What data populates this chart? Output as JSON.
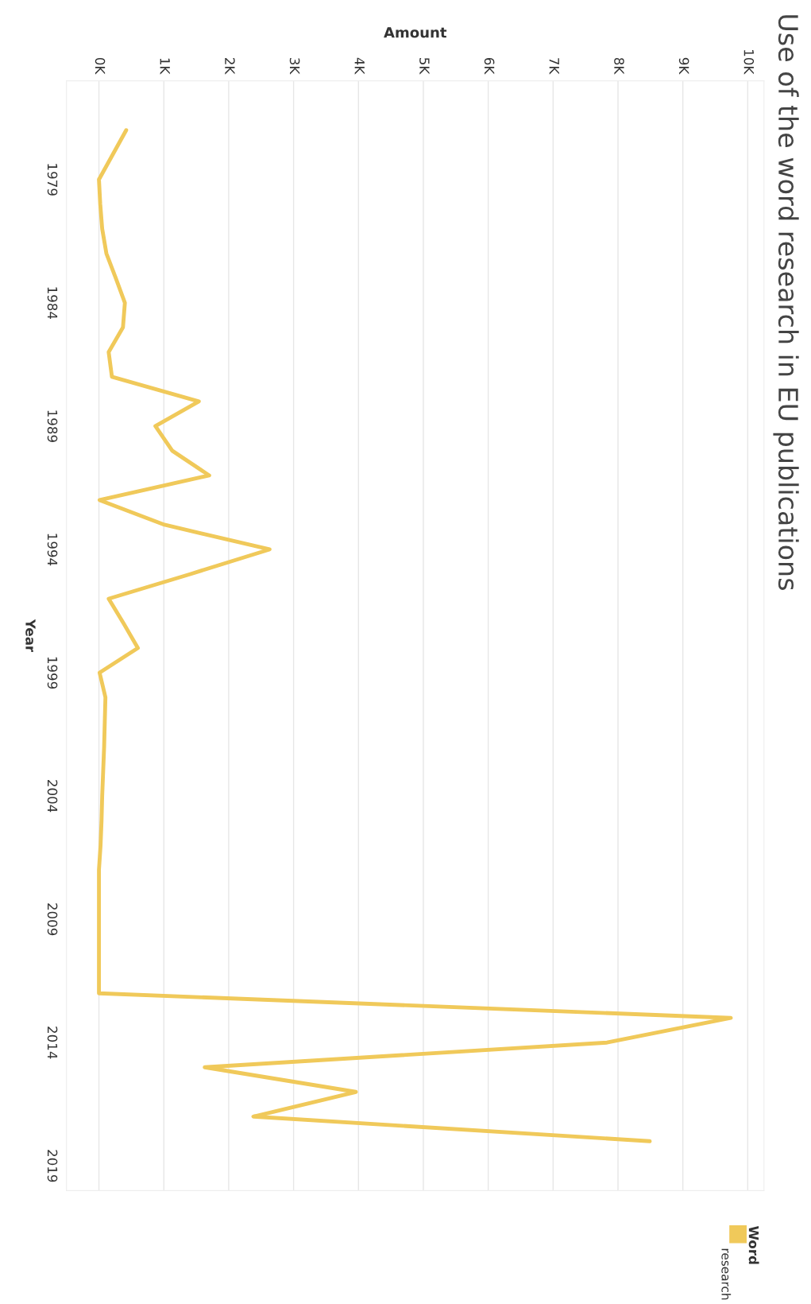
{
  "chart_data": {
    "type": "line",
    "orientation": "horizontal",
    "title": "Use of the word research in EU publications",
    "xlabel": "Amount",
    "ylabel": "Year",
    "legend_title": "Word",
    "x": [
      1977,
      1978,
      1979,
      1980,
      1981,
      1982,
      1983,
      1984,
      1985,
      1986,
      1987,
      1988,
      1989,
      1990,
      1991,
      1992,
      1993,
      1994,
      1995,
      1996,
      1997,
      1998,
      1999,
      2000,
      2001,
      2002,
      2003,
      2004,
      2005,
      2006,
      2007,
      2008,
      2009,
      2010,
      2011,
      2012,
      2013,
      2014,
      2015,
      2016,
      2017,
      2018
    ],
    "series": [
      {
        "name": "research",
        "color": "#f0c95a",
        "values": [
          420,
          210,
          0,
          20,
          50,
          115,
          260,
          400,
          370,
          150,
          200,
          1540,
          870,
          1130,
          1700,
          10,
          1010,
          2630,
          1410,
          150,
          380,
          600,
          10,
          100,
          90,
          80,
          65,
          50,
          40,
          25,
          0,
          0,
          0,
          0,
          0,
          0,
          9740,
          7830,
          1630,
          3960,
          2380,
          8490
        ]
      }
    ],
    "xlim": [
      -500,
      10250
    ],
    "xticks": [
      {
        "value": 0,
        "label": "0K"
      },
      {
        "value": 1000,
        "label": "1K"
      },
      {
        "value": 2000,
        "label": "2K"
      },
      {
        "value": 3000,
        "label": "3K"
      },
      {
        "value": 4000,
        "label": "4K"
      },
      {
        "value": 5000,
        "label": "5K"
      },
      {
        "value": 6000,
        "label": "6K"
      },
      {
        "value": 7000,
        "label": "7K"
      },
      {
        "value": 8000,
        "label": "8K"
      },
      {
        "value": 9000,
        "label": "9K"
      },
      {
        "value": 10000,
        "label": "10K"
      }
    ],
    "ylim": [
      2020,
      1975
    ],
    "yticks": [
      1979,
      1984,
      1989,
      1994,
      1999,
      2004,
      2009,
      2014,
      2019
    ],
    "grid": "x",
    "legend": "bottom right"
  }
}
